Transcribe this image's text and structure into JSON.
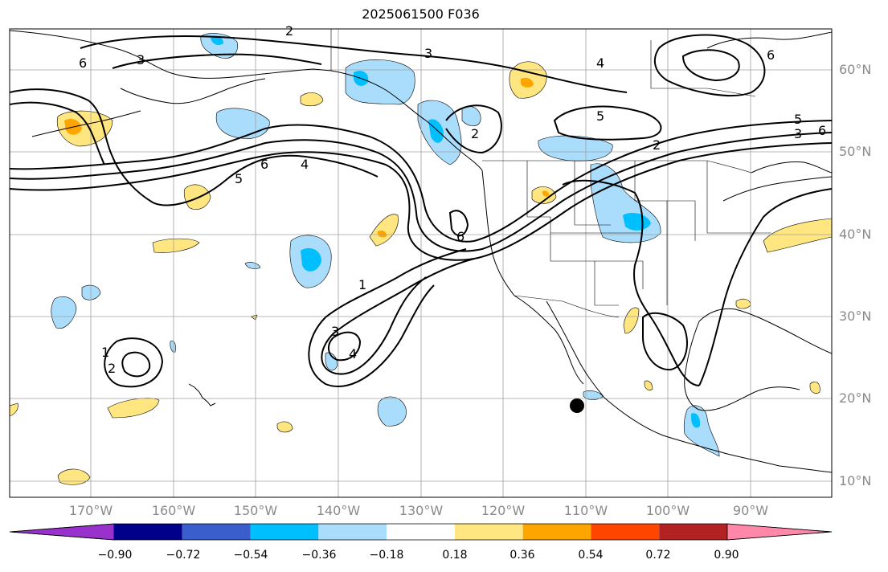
{
  "title": "2025061500 F036",
  "lat_labels": [
    "60°N",
    "50°N",
    "40°N",
    "30°N",
    "20°N",
    "10°N"
  ],
  "lon_labels": [
    "170°W",
    "160°W",
    "150°W",
    "140°W",
    "130°W",
    "120°W",
    "110°W",
    "100°W",
    "90°W"
  ],
  "colorbar": {
    "colors": [
      "#9932cc",
      "#00008b",
      "#3a5fcd",
      "#00bfff",
      "#aadcfb",
      "#ffffff",
      "#ffe680",
      "#ffa500",
      "#ff4500",
      "#b22222",
      "#ff88aa"
    ],
    "tick_labels": [
      "−0.90",
      "−0.72",
      "−0.54",
      "−0.36",
      "−0.18",
      "0.18",
      "0.36",
      "0.54",
      "0.72",
      "0.90"
    ]
  },
  "contour_labels": [
    "6",
    "3",
    "2",
    "3",
    "4",
    "5",
    "5",
    "3",
    "2",
    "6",
    "6",
    "5",
    "6",
    "4",
    "2",
    "6",
    "1",
    "3",
    "4",
    "1",
    "2"
  ],
  "marker": {
    "name": "black-dot"
  }
}
